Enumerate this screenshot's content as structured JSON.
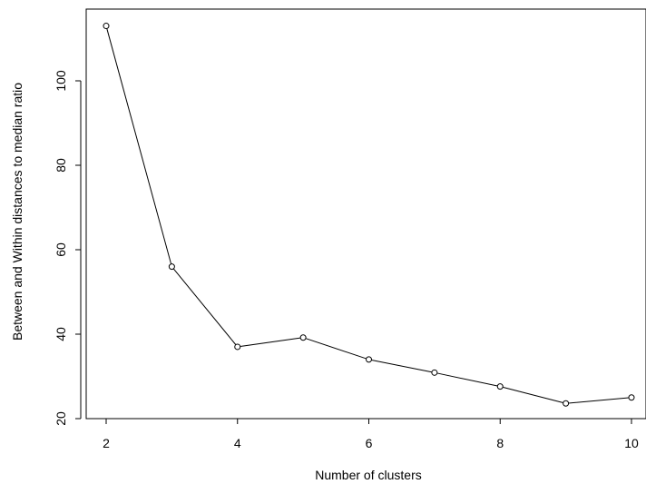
{
  "chart_data": {
    "type": "line",
    "xlabel": "Number of clusters",
    "ylabel": "Between and Within distances to median ratio",
    "xlim": [
      1.6,
      10.4
    ],
    "ylim": [
      19,
      117
    ],
    "x_ticks": [
      2,
      4,
      6,
      8,
      10
    ],
    "y_ticks": [
      20,
      40,
      60,
      80,
      100
    ],
    "x": [
      2,
      3,
      4,
      5,
      6,
      7,
      8,
      9,
      10
    ],
    "values": [
      113,
      56,
      37,
      39.2,
      34,
      30.9,
      27.6,
      23.6,
      25
    ],
    "grid": false,
    "markers": "open-circle",
    "line_color": "#000000"
  }
}
